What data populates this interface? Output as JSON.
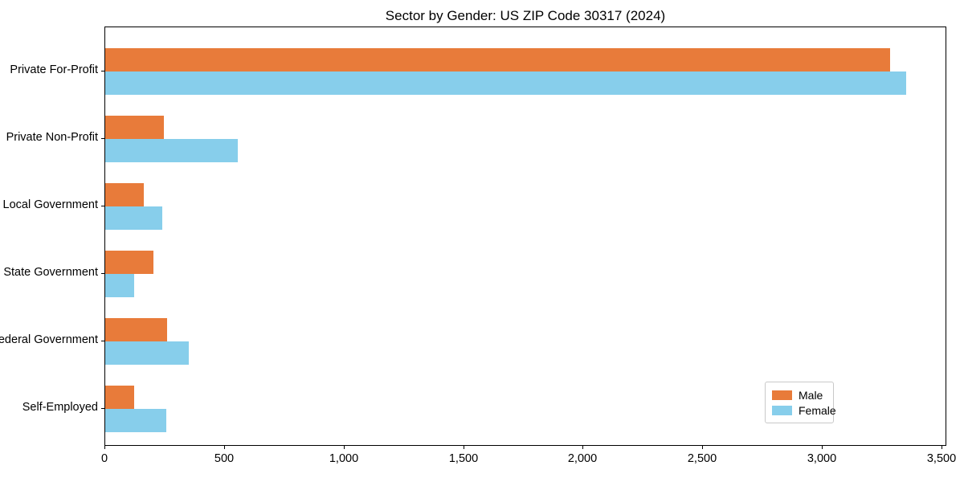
{
  "chart_data": {
    "type": "bar",
    "orientation": "horizontal",
    "title": "Sector by Gender: US ZIP Code 30317 (2024)",
    "xlabel": "",
    "ylabel": "",
    "categories": [
      "Private For-Profit",
      "Private Non-Profit",
      "Local Government",
      "State Government",
      "Federal Government",
      "Self-Employed"
    ],
    "series": [
      {
        "name": "Male",
        "color": "#E87B3A",
        "values": [
          3280,
          245,
          160,
          200,
          260,
          120
        ]
      },
      {
        "name": "Female",
        "color": "#87CEEB",
        "values": [
          3350,
          555,
          240,
          120,
          350,
          255
        ]
      }
    ],
    "xlim": [
      0,
      3520
    ],
    "x_ticks": [
      0,
      500,
      1000,
      1500,
      2000,
      2500,
      3000,
      3500
    ],
    "x_tick_labels": [
      "0",
      "500",
      "1,000",
      "1,500",
      "2,000",
      "2,500",
      "3,000",
      "3,500"
    ],
    "grid": false,
    "legend": {
      "position": "lower right",
      "entries": [
        "Male",
        "Female"
      ]
    },
    "colors": {
      "male": "#E87B3A",
      "female": "#87CEEB",
      "spine": "#000000",
      "legend_border": "#c9c9c9"
    }
  }
}
